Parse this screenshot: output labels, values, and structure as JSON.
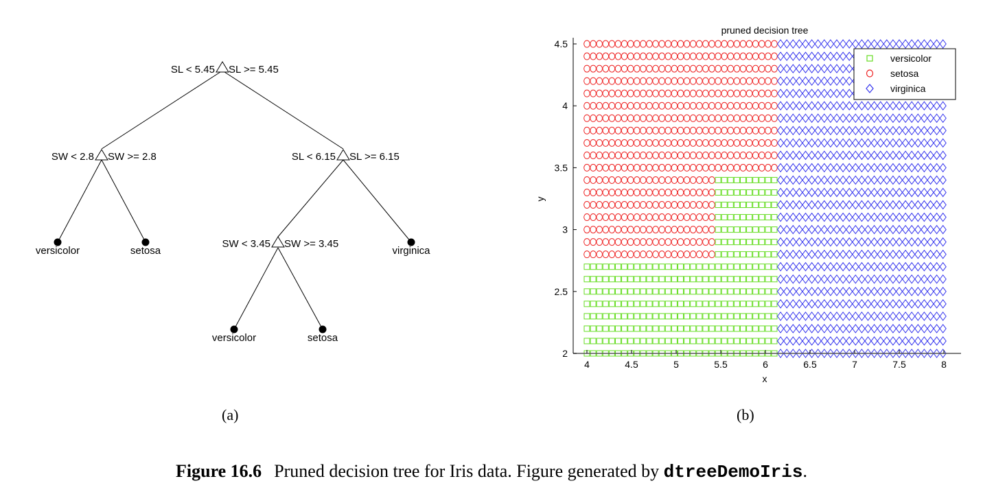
{
  "tree": {
    "nodes": [
      {
        "id": "n1",
        "left_label": "SL < 5.45",
        "right_label": "SL >= 5.45",
        "kind": "split"
      },
      {
        "id": "n2",
        "left_label": "SW < 2.8",
        "right_label": "SW >= 2.8",
        "kind": "split"
      },
      {
        "id": "n3",
        "left_label": "SL < 6.15",
        "right_label": "SL >= 6.15",
        "kind": "split"
      },
      {
        "id": "n4",
        "label": "versicolor",
        "kind": "leaf"
      },
      {
        "id": "n5",
        "label": "setosa",
        "kind": "leaf"
      },
      {
        "id": "n6",
        "left_label": "SW < 3.45",
        "right_label": "SW >= 3.45",
        "kind": "split"
      },
      {
        "id": "n7",
        "label": "virginica",
        "kind": "leaf"
      },
      {
        "id": "n8",
        "label": "versicolor",
        "kind": "leaf"
      },
      {
        "id": "n9",
        "label": "setosa",
        "kind": "leaf"
      }
    ],
    "edges": [
      [
        "n1",
        "n2"
      ],
      [
        "n1",
        "n3"
      ],
      [
        "n2",
        "n4"
      ],
      [
        "n2",
        "n5"
      ],
      [
        "n3",
        "n6"
      ],
      [
        "n3",
        "n7"
      ],
      [
        "n6",
        "n8"
      ],
      [
        "n6",
        "n9"
      ]
    ]
  },
  "chart_data": {
    "type": "scatter",
    "title": "pruned decision tree",
    "xlabel": "x",
    "ylabel": "y",
    "xlim": [
      3.85,
      8.2
    ],
    "ylim": [
      2,
      4.5
    ],
    "xticks": [
      "4",
      "4.5",
      "5",
      "5.5",
      "6",
      "6.5",
      "7",
      "7.5",
      "8"
    ],
    "yticks": [
      "2",
      "2.5",
      "3",
      "3.5",
      "4",
      "4.5"
    ],
    "grid": false,
    "legend_position": "top-right",
    "grid_points": {
      "x_start": 4.0,
      "x_end": 8.0,
      "x_step": 0.07,
      "y_start": 2.0,
      "y_end": 4.5,
      "y_step": 0.1
    },
    "regions": [
      {
        "class": "setosa",
        "rule": "x < 5.45 and y >= 2.8"
      },
      {
        "class": "versicolor",
        "rule": "x < 5.45 and y < 2.8"
      },
      {
        "class": "versicolor",
        "rule": "5.45 <= x < 6.15 and y < 3.45"
      },
      {
        "class": "setosa",
        "rule": "5.45 <= x < 6.15 and y >= 3.45"
      },
      {
        "class": "virginica",
        "rule": "x >= 6.15"
      }
    ],
    "series": [
      {
        "name": "versicolor",
        "marker": "square",
        "color": "#66dd22"
      },
      {
        "name": "setosa",
        "marker": "circle",
        "color": "#ee2222"
      },
      {
        "name": "virginica",
        "marker": "diamond",
        "color": "#3333ee"
      }
    ]
  },
  "panel_labels": {
    "a": "(a)",
    "b": "(b)"
  },
  "caption": {
    "label": "Figure 16.6",
    "text": "Pruned decision tree for Iris data. Figure generated by ",
    "code": "dtreeDemoIris",
    "end": "."
  }
}
